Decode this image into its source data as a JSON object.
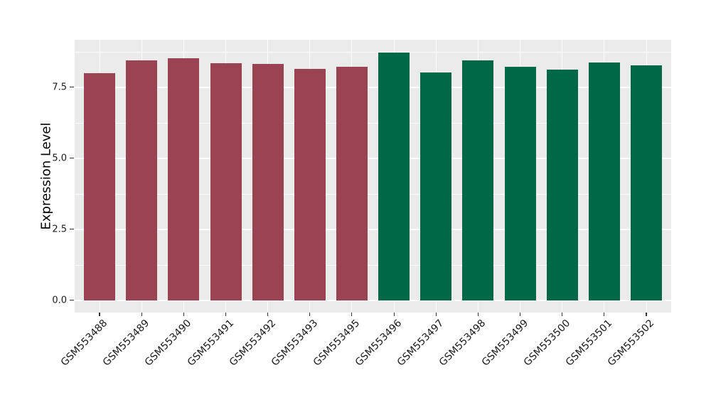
{
  "figure": {
    "background": "#ffffff",
    "panel_background": "#EBEBEB",
    "gridline_color": "#FFFFFF",
    "tick_color": "#333333",
    "text_color": "#1a1a1a"
  },
  "chart_data": {
    "type": "bar",
    "title": "",
    "xlabel": "",
    "ylabel": "Expression Level",
    "categories": [
      "GSM553488",
      "GSM553489",
      "GSM553490",
      "GSM553491",
      "GSM553492",
      "GSM553493",
      "GSM553495",
      "GSM553496",
      "GSM553497",
      "GSM553498",
      "GSM553499",
      "GSM553500",
      "GSM553501",
      "GSM553502"
    ],
    "values": [
      8.0,
      8.44,
      8.52,
      8.35,
      8.33,
      8.15,
      8.23,
      8.72,
      8.02,
      8.44,
      8.21,
      8.12,
      8.38,
      8.28
    ],
    "bar_colors": [
      "#9A4352",
      "#9A4352",
      "#9A4352",
      "#9A4352",
      "#9A4352",
      "#9A4352",
      "#9A4352",
      "#006847",
      "#006847",
      "#006847",
      "#006847",
      "#006847",
      "#006847",
      "#006847"
    ],
    "group_colors": {
      "first_group": "#9A4352",
      "second_group": "#006847"
    },
    "yticks": [
      0,
      2.5,
      5,
      7.5
    ],
    "ytick_labels": [
      "0.0",
      "2.5",
      "5.0",
      "7.5"
    ],
    "minor_yticks": [
      1.25,
      3.75,
      6.25,
      8.75
    ],
    "ylim": [
      -0.43,
      9.17
    ],
    "grid": true,
    "legend_position": "none",
    "x_label_rotation_deg": 45
  }
}
